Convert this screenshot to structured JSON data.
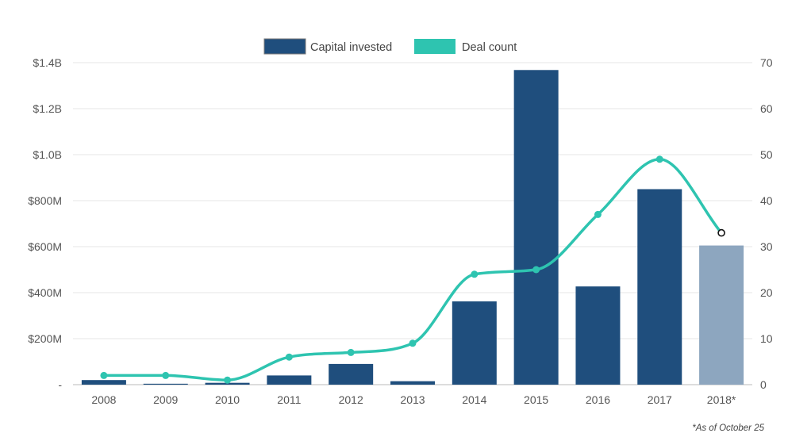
{
  "chart_data": {
    "type": "bar",
    "categories": [
      "2008",
      "2009",
      "2010",
      "2011",
      "2012",
      "2013",
      "2014",
      "2015",
      "2016",
      "2017",
      "2018*"
    ],
    "series": [
      {
        "name": "Capital invested",
        "chart_type": "bar",
        "axis": "left",
        "color": "#1f4e7d",
        "highlight_color": "#8da6bf",
        "values": [
          20,
          4,
          8,
          40,
          90,
          15,
          362,
          1368,
          427,
          850,
          605
        ]
      },
      {
        "name": "Deal count",
        "chart_type": "line",
        "axis": "right",
        "color": "#2ec4b0",
        "values": [
          2,
          2,
          1,
          6,
          7,
          9,
          24,
          25,
          37,
          49,
          33
        ]
      }
    ],
    "y_left": {
      "min": 0,
      "max": 1400,
      "ticks": [
        0,
        200,
        400,
        600,
        800,
        1000,
        1200,
        1400
      ],
      "tick_labels": [
        "-",
        "$200M",
        "$400M",
        "$600M",
        "$800M",
        "$1.0B",
        "$1.2B",
        "$1.4B"
      ]
    },
    "y_right": {
      "min": 0,
      "max": 70,
      "ticks": [
        0,
        10,
        20,
        30,
        40,
        50,
        60,
        70
      ],
      "tick_labels": [
        "0",
        "10",
        "20",
        "30",
        "40",
        "50",
        "60",
        "70"
      ]
    },
    "grid": true,
    "legend": {
      "position": "top-center",
      "entries": [
        "Capital invested",
        "Deal count"
      ]
    },
    "footnote": "*As of October 25"
  }
}
